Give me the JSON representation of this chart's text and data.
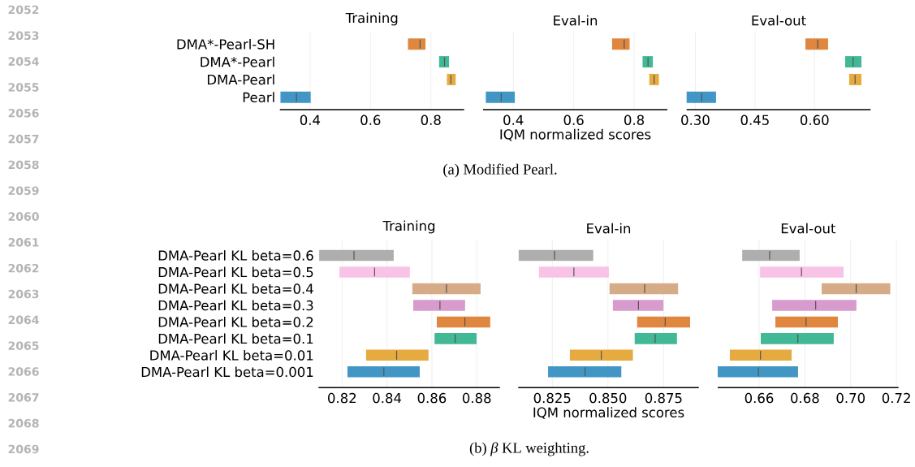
{
  "chart_data": [
    {
      "type": "box",
      "orientation": "horizontal",
      "title": "Training",
      "categories": [
        "DMA*-Pearl-SH",
        "DMA*-Pearl",
        "DMA-Pearl",
        "Pearl"
      ],
      "boxes": [
        {
          "low": 0.724,
          "q1": 0.724,
          "median": 0.764,
          "q3": 0.782,
          "high": 0.782
        },
        {
          "low": 0.827,
          "q1": 0.827,
          "median": 0.845,
          "q3": 0.86,
          "high": 0.86
        },
        {
          "low": 0.853,
          "q1": 0.853,
          "median": 0.866,
          "q3": 0.882,
          "high": 0.882
        },
        {
          "low": 0.302,
          "q1": 0.302,
          "median": 0.355,
          "q3": 0.402,
          "high": 0.402
        }
      ],
      "colors": [
        "#e0873f",
        "#41b896",
        "#e6ab40",
        "#4196c6"
      ],
      "xlim": [
        0.3,
        0.91
      ],
      "xticks": [
        0.4,
        0.6,
        0.8
      ],
      "grid": "x",
      "annotations": [
        "2052",
        "2053",
        "2054",
        "2055",
        "2056",
        "2057",
        "2058",
        "2059",
        "2060",
        "2061",
        "2062",
        "2063",
        "2064",
        "2065",
        "2066",
        "2067",
        "2068",
        "2069"
      ]
    },
    {
      "type": "box",
      "orientation": "horizontal",
      "title": "Eval-in",
      "xlabel": "IQM normalized scores",
      "annotations": [
        "(a) Modified Pearl."
      ],
      "boxes": [
        {
          "low": 0.727,
          "q1": 0.727,
          "median": 0.767,
          "q3": 0.785,
          "high": 0.785
        },
        {
          "low": 0.828,
          "q1": 0.828,
          "median": 0.846,
          "q3": 0.862,
          "high": 0.862
        },
        {
          "low": 0.85,
          "q1": 0.85,
          "median": 0.866,
          "q3": 0.882,
          "high": 0.882
        },
        {
          "low": 0.309,
          "q1": 0.309,
          "median": 0.36,
          "q3": 0.405,
          "high": 0.405
        }
      ],
      "colors": [
        "#e0873f",
        "#41b896",
        "#e6ab40",
        "#4196c6"
      ],
      "xlim": [
        0.3,
        0.91
      ],
      "xticks": [
        0.4,
        0.6,
        0.8
      ],
      "grid": "x",
      "tick_labels": "x"
    },
    {
      "type": "box",
      "orientation": "horizontal",
      "title": "Eval-out",
      "boxes": [
        {
          "low": 0.577,
          "q1": 0.577,
          "median": 0.608,
          "q3": 0.634,
          "high": 0.634
        },
        {
          "low": 0.677,
          "q1": 0.677,
          "median": 0.697,
          "q3": 0.718,
          "high": 0.718
        },
        {
          "low": 0.687,
          "q1": 0.687,
          "median": 0.702,
          "q3": 0.718,
          "high": 0.718
        },
        {
          "low": 0.278,
          "q1": 0.278,
          "median": 0.316,
          "q3": 0.352,
          "high": 0.352
        }
      ],
      "colors": [
        "#e0873f",
        "#41b896",
        "#e6ab40",
        "#4196c6"
      ],
      "xlim": [
        0.278,
        0.741
      ],
      "xticks": [
        {
          "value": 0.3,
          "label": "0.30"
        },
        0.45,
        {
          "value": 0.6,
          "label": "0.60"
        }
      ],
      "grid": "x",
      "tick_labels": "x"
    },
    {
      "type": "box",
      "orientation": "horizontal",
      "title": "Training",
      "categories": [
        "DMA-Pearl KL beta=0.6",
        "DMA-Pearl KL beta=0.5",
        "DMA-Pearl KL beta=0.4",
        "DMA-Pearl KL beta=0.3",
        "DMA-Pearl KL beta=0.2",
        "DMA-Pearl KL beta=0.1",
        "DMA-Pearl KL beta=0.01",
        "DMA-Pearl KL beta=0.001"
      ],
      "boxes": [
        {
          "low": 0.8098,
          "q1": 0.8098,
          "median": 0.8253,
          "q3": 0.843,
          "high": 0.843
        },
        {
          "low": 0.8188,
          "q1": 0.8188,
          "median": 0.8345,
          "q3": 0.8502,
          "high": 0.8502
        },
        {
          "low": 0.8513,
          "q1": 0.8513,
          "median": 0.8665,
          "q3": 0.8817,
          "high": 0.8817
        },
        {
          "low": 0.8517,
          "q1": 0.8517,
          "median": 0.8636,
          "q3": 0.8748,
          "high": 0.8748
        },
        {
          "low": 0.8622,
          "q1": 0.8622,
          "median": 0.8747,
          "q3": 0.886,
          "high": 0.886
        },
        {
          "low": 0.8612,
          "q1": 0.8612,
          "median": 0.8704,
          "q3": 0.8799,
          "high": 0.8799
        },
        {
          "low": 0.8307,
          "q1": 0.8307,
          "median": 0.8443,
          "q3": 0.8585,
          "high": 0.8585
        },
        {
          "low": 0.8224,
          "q1": 0.8224,
          "median": 0.8386,
          "q3": 0.8546,
          "high": 0.8546
        }
      ],
      "colors": [
        "#aeaeae",
        "#f9c3e8",
        "#d6ab88",
        "#d89bcd",
        "#e0873f",
        "#41b896",
        "#e6ab40",
        "#4196c6"
      ],
      "xlim": [
        0.8095,
        0.8903
      ],
      "xticks": [
        0.82,
        0.84,
        0.86,
        0.88
      ],
      "grid": "x"
    },
    {
      "type": "box",
      "orientation": "horizontal",
      "title": "Eval-in",
      "xlabel": "IQM normalized scores",
      "annotations": [
        "(b) *β* KL weighting."
      ],
      "boxes": [
        {
          "low": 0.8099,
          "q1": 0.8099,
          "median": 0.826,
          "q3": 0.8434,
          "high": 0.8434
        },
        {
          "low": 0.819,
          "q1": 0.819,
          "median": 0.8347,
          "q3": 0.8504,
          "high": 0.8504
        },
        {
          "low": 0.8507,
          "q1": 0.8507,
          "median": 0.8665,
          "q3": 0.8815,
          "high": 0.8815
        },
        {
          "low": 0.8522,
          "q1": 0.8522,
          "median": 0.8637,
          "q3": 0.8749,
          "high": 0.8749
        },
        {
          "low": 0.8631,
          "q1": 0.8631,
          "median": 0.8757,
          "q3": 0.8869,
          "high": 0.8869
        },
        {
          "low": 0.862,
          "q1": 0.862,
          "median": 0.8712,
          "q3": 0.881,
          "high": 0.881
        },
        {
          "low": 0.8329,
          "q1": 0.8329,
          "median": 0.847,
          "q3": 0.8612,
          "high": 0.8612
        },
        {
          "low": 0.8231,
          "q1": 0.8231,
          "median": 0.8397,
          "q3": 0.856,
          "high": 0.856
        }
      ],
      "colors": [
        "#aeaeae",
        "#f9c3e8",
        "#d6ab88",
        "#d89bcd",
        "#e0873f",
        "#41b896",
        "#e6ab40",
        "#4196c6"
      ],
      "xlim": [
        0.8097,
        0.8908
      ],
      "xticks": [
        0.825,
        {
          "value": 0.85,
          "label": "0.850"
        },
        0.875
      ],
      "grid": "x",
      "tick_labels": "x"
    },
    {
      "type": "box",
      "orientation": "horizontal",
      "title": "Eval-out",
      "boxes": [
        {
          "low": 0.6526,
          "q1": 0.6526,
          "median": 0.6646,
          "q3": 0.6777,
          "high": 0.6777
        },
        {
          "low": 0.6604,
          "q1": 0.6604,
          "median": 0.6785,
          "q3": 0.6969,
          "high": 0.6969
        },
        {
          "low": 0.6873,
          "q1": 0.6873,
          "median": 0.7024,
          "q3": 0.7173,
          "high": 0.7173
        },
        {
          "low": 0.6657,
          "q1": 0.6657,
          "median": 0.6847,
          "q3": 0.7025,
          "high": 0.7025
        },
        {
          "low": 0.6671,
          "q1": 0.6671,
          "median": 0.6805,
          "q3": 0.6944,
          "high": 0.6944
        },
        {
          "low": 0.6607,
          "q1": 0.6607,
          "median": 0.6769,
          "q3": 0.6926,
          "high": 0.6926
        },
        {
          "low": 0.6472,
          "q1": 0.6472,
          "median": 0.6606,
          "q3": 0.6742,
          "high": 0.6742
        },
        {
          "low": 0.6419,
          "q1": 0.6419,
          "median": 0.6597,
          "q3": 0.677,
          "high": 0.677
        }
      ],
      "colors": [
        "#aeaeae",
        "#f9c3e8",
        "#d6ab88",
        "#d89bcd",
        "#e0873f",
        "#41b896",
        "#e6ab40",
        "#4196c6"
      ],
      "xlim": [
        0.6419,
        0.7209
      ],
      "xticks": [
        0.66,
        0.68,
        {
          "value": 0.7,
          "label": "0.70"
        },
        0.72
      ],
      "grid": "x",
      "tick_labels": "x"
    }
  ]
}
